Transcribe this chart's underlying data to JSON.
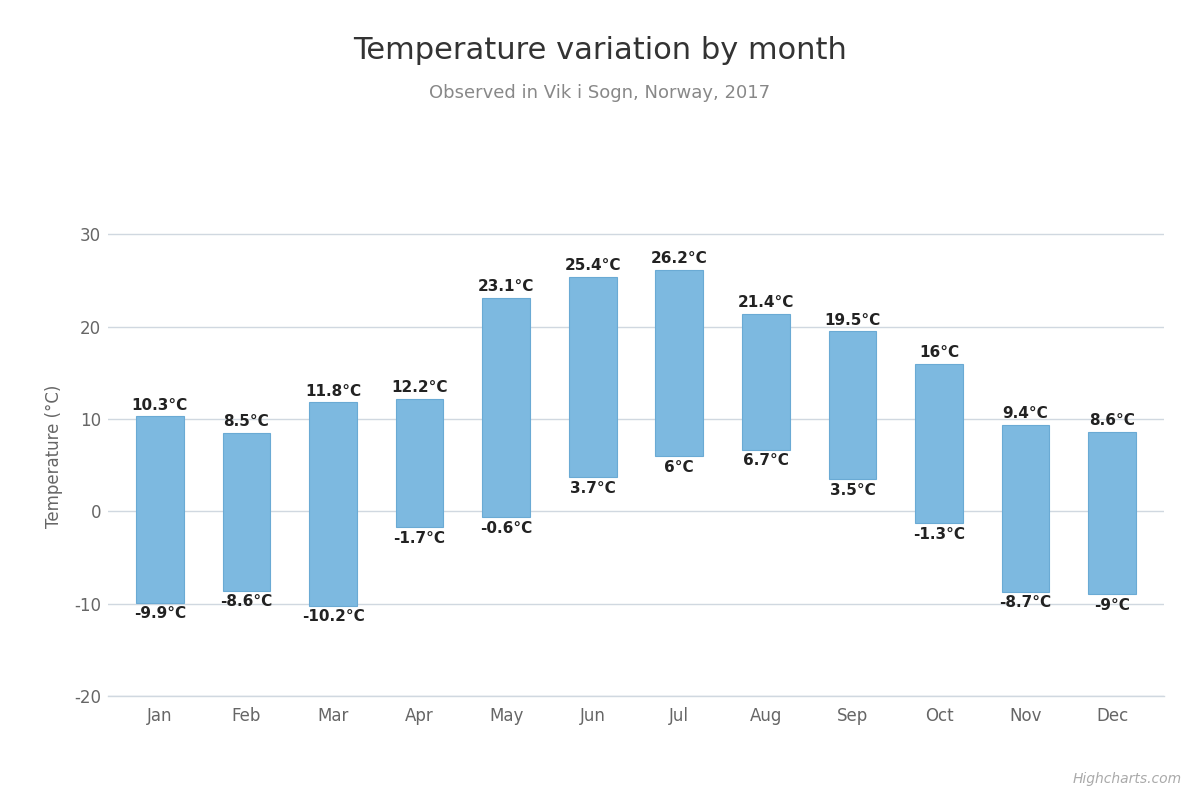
{
  "title": "Temperature variation by month",
  "subtitle": "Observed in Vik i Sogn, Norway, 2017",
  "ylabel": "Temperature (°C)",
  "categories": [
    "Jan",
    "Feb",
    "Mar",
    "Apr",
    "May",
    "Jun",
    "Jul",
    "Aug",
    "Sep",
    "Oct",
    "Nov",
    "Dec"
  ],
  "low": [
    -9.9,
    -8.6,
    -10.2,
    -1.7,
    -0.6,
    3.7,
    6.0,
    6.7,
    3.5,
    -1.3,
    -8.7,
    -9.0
  ],
  "high": [
    10.3,
    8.5,
    11.8,
    12.2,
    23.1,
    25.4,
    26.2,
    21.4,
    19.5,
    16.0,
    9.4,
    8.6
  ],
  "low_labels": [
    "-9.9°C",
    "-8.6°C",
    "-10.2°C",
    "-1.7°C",
    "-0.6°C",
    "3.7°C",
    "6°C",
    "6.7°C",
    "3.5°C",
    "-1.3°C",
    "-8.7°C",
    "-9°C"
  ],
  "high_labels": [
    "10.3°C",
    "8.5°C",
    "11.8°C",
    "12.2°C",
    "23.1°C",
    "25.4°C",
    "26.2°C",
    "21.4°C",
    "19.5°C",
    "16°C",
    "9.4°C",
    "8.6°C"
  ],
  "bar_color": "#7db9e0",
  "bar_edge_color": "#6aaad4",
  "background_color": "#ffffff",
  "grid_color": "#d0d8e0",
  "ylim": [
    -20,
    32
  ],
  "yticks": [
    -20,
    -10,
    0,
    10,
    20,
    30
  ],
  "title_fontsize": 22,
  "subtitle_fontsize": 13,
  "label_fontsize": 11,
  "axis_tick_fontsize": 12,
  "ylabel_fontsize": 12,
  "watermark": "Highcharts.com",
  "bar_width": 0.55,
  "title_color": "#333333",
  "subtitle_color": "#888888",
  "tick_color": "#666666",
  "label_color": "#222222",
  "watermark_color": "#aaaaaa"
}
